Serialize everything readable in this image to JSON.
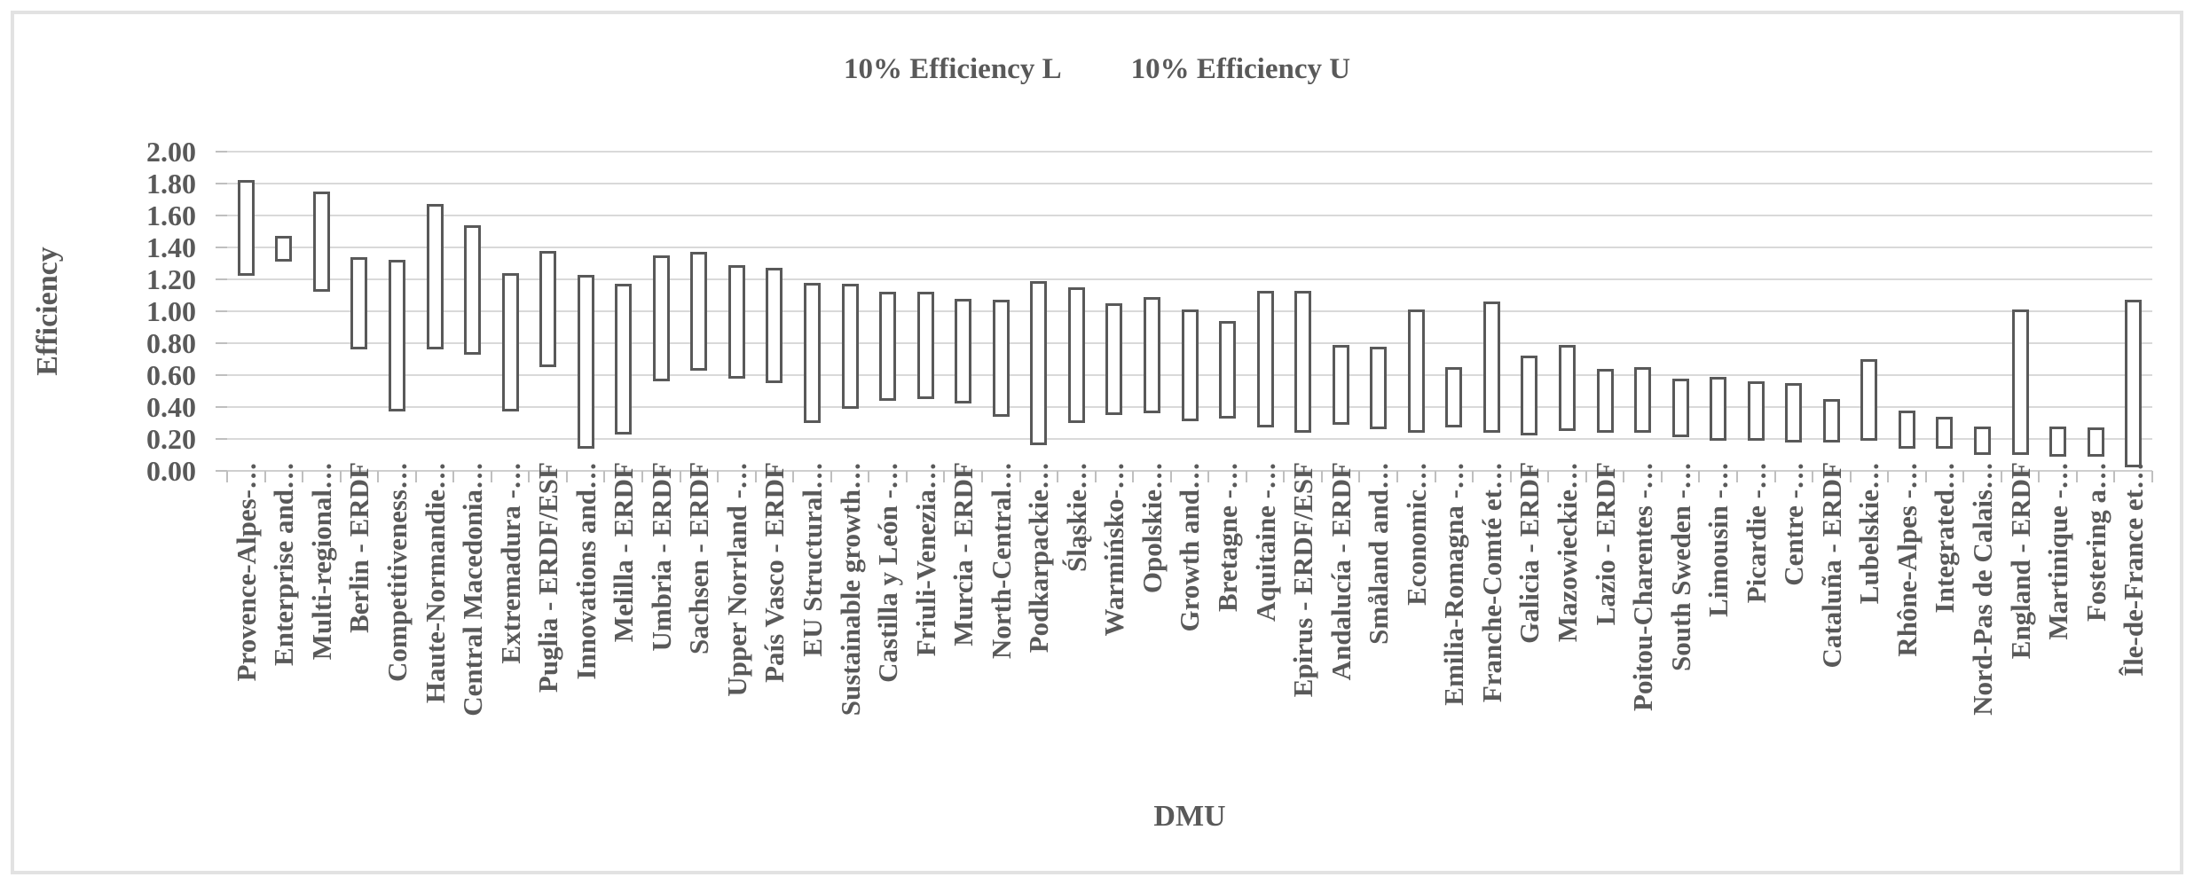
{
  "legend": {
    "items": [
      "10% Efficiency L",
      "10% Efficiency U"
    ]
  },
  "y_axis": {
    "title": "Efficiency",
    "tick_labels": [
      "2.00",
      "1.80",
      "1.60",
      "1.40",
      "1.20",
      "1.00",
      "0.80",
      "0.60",
      "0.40",
      "0.20",
      "0.00"
    ]
  },
  "x_axis": {
    "title": "DMU"
  },
  "chart_data": {
    "type": "bar",
    "subtype": "floating-range-bars",
    "title": "",
    "legend": [
      "10% Efficiency L",
      "10% Efficiency U"
    ],
    "legend_position": "top",
    "xlabel": "DMU",
    "ylabel": "Efficiency",
    "ylim": [
      0.0,
      2.0
    ],
    "ytick_step": 0.2,
    "grid": "horizontal",
    "bar_fill": "#ffffff",
    "bar_border": "#595959",
    "categories": [
      "Provence-Alpes-…",
      "Enterprise and…",
      "Multi-regional…",
      "Berlin - ERDF",
      "Competitiveness…",
      "Haute-Normandie…",
      "Central Macedonia…",
      "Extremadura -…",
      "Puglia - ERDF/ESF",
      "Innovations and…",
      "Melilla - ERDF",
      "Umbria - ERDF",
      "Sachsen - ERDF",
      "Upper Norrland -…",
      "País Vasco - ERDF",
      "EU Structural…",
      "Sustainable growth…",
      "Castilla y León -…",
      "Friuli-Venezia…",
      "Murcia - ERDF",
      "North-Central…",
      "Podkarpackie…",
      "Śląskie…",
      "Warmińsko-…",
      "Opolskie…",
      "Growth and…",
      "Bretagne -…",
      "Aquitaine -…",
      "Epirus - ERDF/ESF",
      "Andalucía - ERDF",
      "Småland and…",
      "Economic…",
      "Emilia-Romagna -…",
      "Franche-Comté et…",
      "Galicia - ERDF",
      "Mazowieckie…",
      "Lazio - ERDF",
      "Poitou-Charentes -…",
      "South Sweden -…",
      "Limousin -…",
      "Picardie -…",
      "Centre -…",
      "Cataluña - ERDF",
      "Lubelskie…",
      "Rhône-Alpes -…",
      "Integrated…",
      "Nord-Pas de Calais…",
      "England - ERDF",
      "Martinique -…",
      "Fostering a…",
      "Île-de-France et…"
    ],
    "series": [
      {
        "name": "10% Efficiency L",
        "values": [
          1.22,
          1.31,
          1.12,
          0.76,
          0.37,
          0.76,
          0.73,
          0.37,
          0.65,
          0.14,
          0.23,
          0.56,
          0.63,
          0.58,
          0.55,
          0.3,
          0.39,
          0.44,
          0.45,
          0.42,
          0.34,
          0.16,
          0.3,
          0.35,
          0.36,
          0.31,
          0.33,
          0.27,
          0.24,
          0.29,
          0.26,
          0.24,
          0.27,
          0.24,
          0.22,
          0.25,
          0.24,
          0.24,
          0.21,
          0.19,
          0.19,
          0.18,
          0.18,
          0.19,
          0.14,
          0.14,
          0.1,
          0.1,
          0.09,
          0.09,
          0.02
        ]
      },
      {
        "name": "10% Efficiency U",
        "values": [
          1.82,
          1.47,
          1.75,
          1.34,
          1.32,
          1.67,
          1.54,
          1.24,
          1.38,
          1.23,
          1.17,
          1.35,
          1.37,
          1.29,
          1.27,
          1.18,
          1.17,
          1.12,
          1.12,
          1.08,
          1.07,
          1.19,
          1.15,
          1.05,
          1.09,
          1.01,
          0.94,
          1.13,
          1.13,
          0.79,
          0.78,
          1.01,
          0.65,
          1.06,
          0.72,
          0.79,
          0.64,
          0.65,
          0.58,
          0.59,
          0.56,
          0.55,
          0.45,
          0.7,
          0.38,
          0.34,
          0.28,
          1.01,
          0.28,
          0.27,
          1.07
        ]
      }
    ],
    "colors": {
      "text": "#595959",
      "gridline": "#d9d9d9",
      "axis": "#bfbfbf",
      "frame_border": "#e2e2e2"
    }
  }
}
